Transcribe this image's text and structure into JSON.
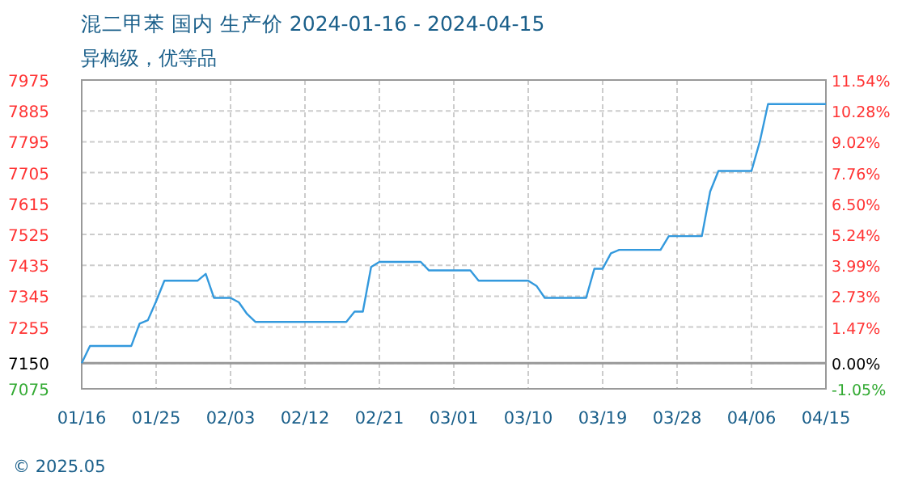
{
  "chart_data": {
    "type": "line",
    "title": "混二甲苯 国内 生产价 2024-01-16 - 2024-04-15",
    "subtitle": "异构级，优等品",
    "annotations": [
      "© 2025.05"
    ],
    "x": [
      "2024-01-16",
      "2024-01-17",
      "2024-01-22",
      "2024-01-23",
      "2024-01-24",
      "2024-01-25",
      "2024-01-26",
      "2024-01-30",
      "2024-01-31",
      "2024-02-01",
      "2024-02-03",
      "2024-02-04",
      "2024-02-05",
      "2024-02-06",
      "2024-02-17",
      "2024-02-18",
      "2024-02-19",
      "2024-02-20",
      "2024-02-21",
      "2024-02-26",
      "2024-02-27",
      "2024-03-03",
      "2024-03-04",
      "2024-03-10",
      "2024-03-11",
      "2024-03-12",
      "2024-03-17",
      "2024-03-18",
      "2024-03-19",
      "2024-03-20",
      "2024-03-21",
      "2024-03-26",
      "2024-03-27",
      "2024-03-31",
      "2024-04-01",
      "2024-04-02",
      "2024-04-06",
      "2024-04-07",
      "2024-04-08",
      "2024-04-15"
    ],
    "series": [
      {
        "color": "#3399dd",
        "values": [
          7150,
          7200,
          7200,
          7265,
          7275,
          7330,
          7390,
          7390,
          7410,
          7340,
          7340,
          7327,
          7293,
          7270,
          7270,
          7300,
          7300,
          7430,
          7445,
          7445,
          7420,
          7420,
          7390,
          7390,
          7375,
          7340,
          7340,
          7425,
          7425,
          7470,
          7480,
          7480,
          7520,
          7520,
          7650,
          7710,
          7710,
          7795,
          7905,
          7905
        ]
      }
    ],
    "xlim": [
      "2024-01-16",
      "2024-04-15"
    ],
    "xticks": [
      {
        "value": "2024-01-16",
        "label": "01/16"
      },
      {
        "value": "2024-01-25",
        "label": "01/25"
      },
      {
        "value": "2024-02-03",
        "label": "02/03"
      },
      {
        "value": "2024-02-12",
        "label": "02/12"
      },
      {
        "value": "2024-02-21",
        "label": "02/21"
      },
      {
        "value": "2024-03-01",
        "label": "03/01"
      },
      {
        "value": "2024-03-10",
        "label": "03/10"
      },
      {
        "value": "2024-03-19",
        "label": "03/19"
      },
      {
        "value": "2024-03-28",
        "label": "03/28"
      },
      {
        "value": "2024-04-06",
        "label": "04/06"
      },
      {
        "value": "2024-04-15",
        "label": "04/15"
      }
    ],
    "ylim": [
      7075,
      7975
    ],
    "yticks": [
      7075,
      7150,
      7255,
      7345,
      7435,
      7525,
      7615,
      7705,
      7795,
      7885,
      7975
    ],
    "y2lim": [
      -1.05,
      11.54
    ],
    "y2ticks": [
      {
        "value": -1.05,
        "label": "-1.05%"
      },
      {
        "value": 0,
        "label": "0.00%"
      },
      {
        "value": 1.47,
        "label": "1.47%"
      },
      {
        "value": 2.73,
        "label": "2.73%"
      },
      {
        "value": 3.99,
        "label": "3.99%"
      },
      {
        "value": 5.24,
        "label": "5.24%"
      },
      {
        "value": 6.5,
        "label": "6.50%"
      },
      {
        "value": 7.76,
        "label": "7.76%"
      },
      {
        "value": 9.02,
        "label": "9.02%"
      },
      {
        "value": 10.28,
        "label": "10.28%"
      },
      {
        "value": 11.54,
        "label": "11.54%"
      }
    ],
    "ref_lines": [
      {
        "axis": "y",
        "value": 7150,
        "label": null,
        "color": "#999999"
      }
    ],
    "grid": true,
    "line_style": "solid",
    "marker": "none"
  }
}
